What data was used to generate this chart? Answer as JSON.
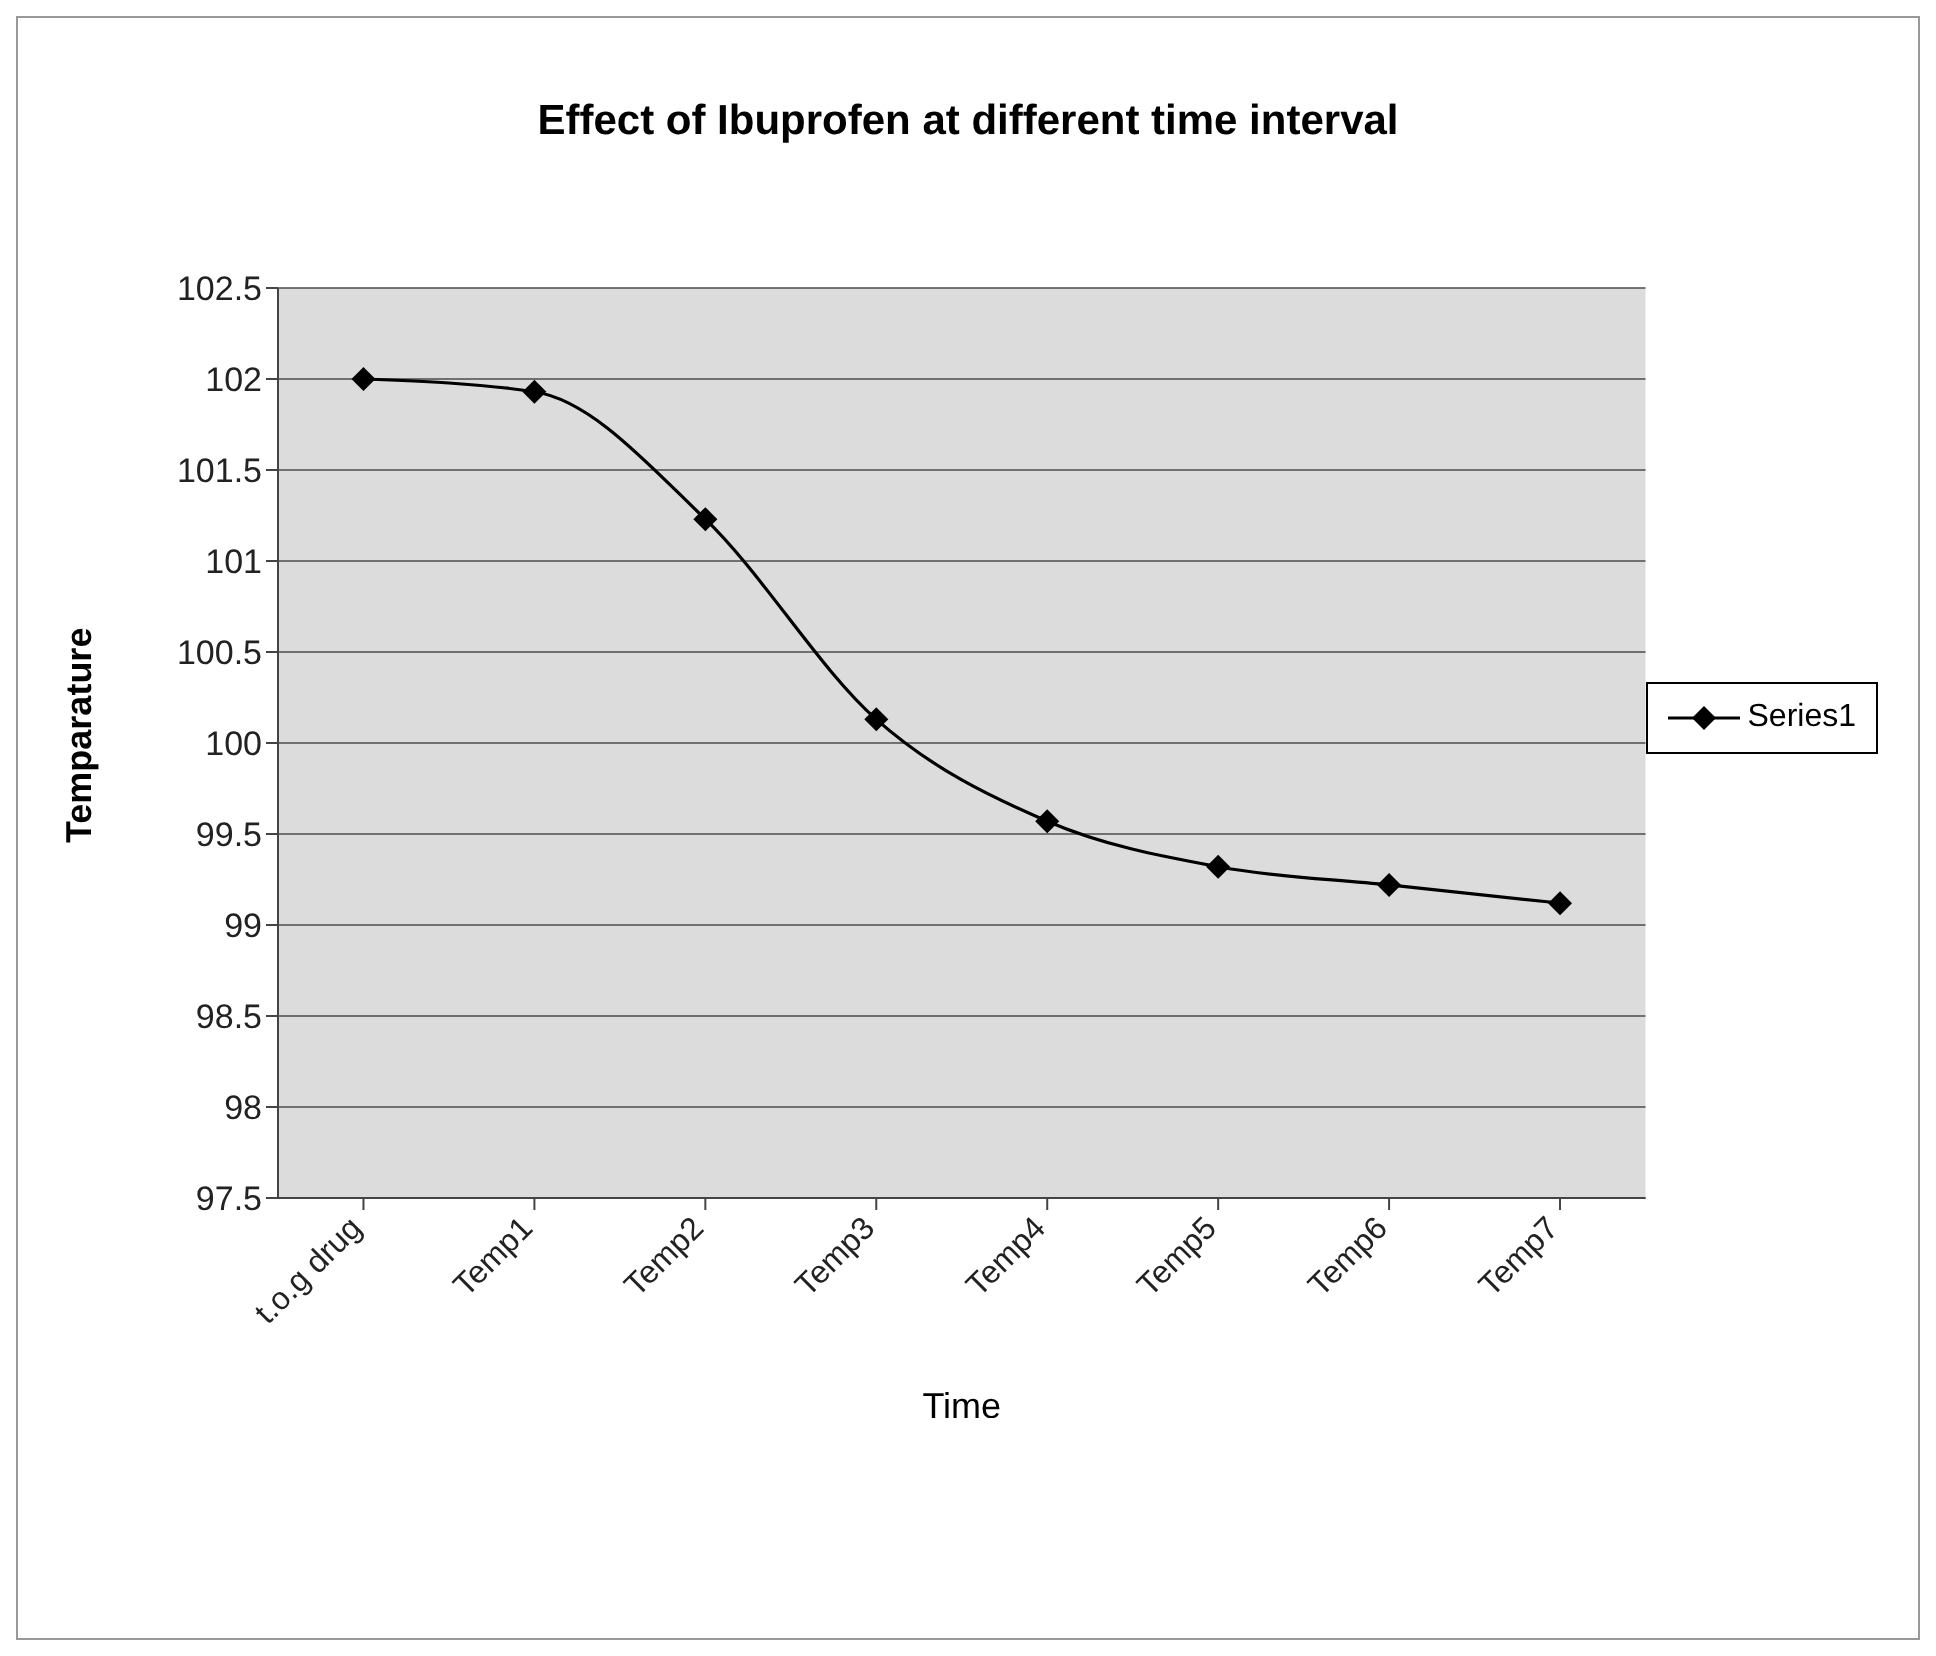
{
  "chart_data": {
    "type": "line",
    "title": "Effect of Ibuprofen at different time interval",
    "xlabel": "Time",
    "ylabel": "Temparature",
    "categories": [
      "t.o.g drug",
      "Temp1",
      "Temp2",
      "Temp3",
      "Temp4",
      "Temp5",
      "Temp6",
      "Temp7"
    ],
    "series": [
      {
        "name": "Series1",
        "color": "#000000",
        "values": [
          102.0,
          101.93,
          101.23,
          100.13,
          99.57,
          99.32,
          99.22,
          99.12
        ]
      }
    ],
    "ylim": [
      97.5,
      102.5
    ],
    "yticks": [
      97.5,
      98,
      98.5,
      99,
      99.5,
      100,
      100.5,
      101,
      101.5,
      102,
      102.5
    ],
    "grid": "y",
    "legend": "right",
    "marker": "diamond",
    "line_style": "solid"
  }
}
